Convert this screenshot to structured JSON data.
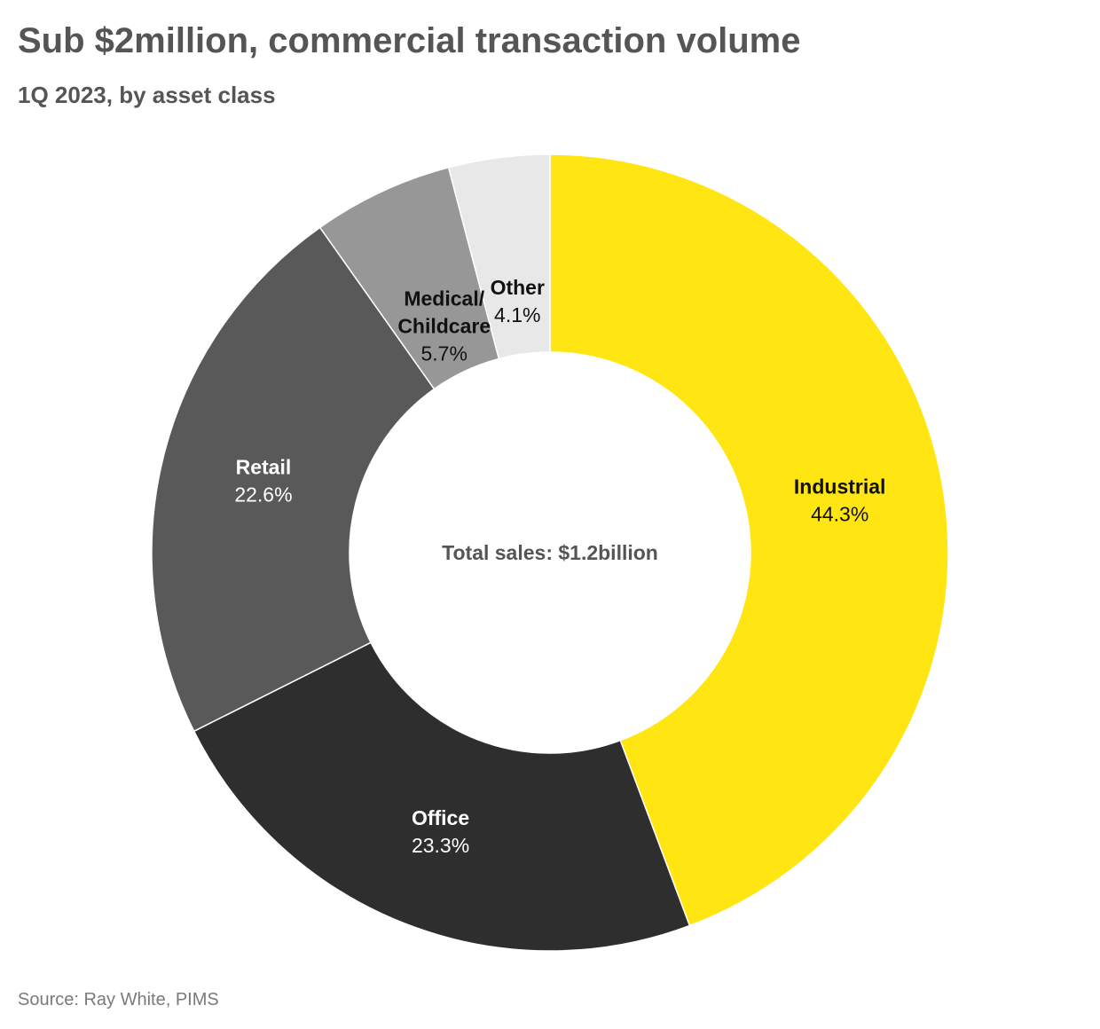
{
  "chart_data": {
    "type": "pie",
    "title": "Sub $2million, commercial transaction volume",
    "subtitle": "1Q 2023, by asset class",
    "center_label": "Total sales: $1.2billion",
    "source": "Source: Ray White, PIMS",
    "slices": [
      {
        "label": "Industrial",
        "value": 44.3,
        "value_label": "44.3%",
        "color": "#FFE511",
        "text_color": "#111111"
      },
      {
        "label": "Office",
        "value": 23.3,
        "value_label": "23.3%",
        "color": "#2E2E2E",
        "text_color": "#FFFFFF"
      },
      {
        "label": "Retail",
        "value": 22.6,
        "value_label": "22.6%",
        "color": "#595959",
        "text_color": "#FFFFFF"
      },
      {
        "label": "Medical/\nChildcare",
        "value": 5.7,
        "value_label": "5.7%",
        "color": "#979797",
        "text_color": "#111111"
      },
      {
        "label": "Other",
        "value": 4.1,
        "value_label": "4.1%",
        "color": "#E8E8E8",
        "text_color": "#111111"
      }
    ]
  }
}
